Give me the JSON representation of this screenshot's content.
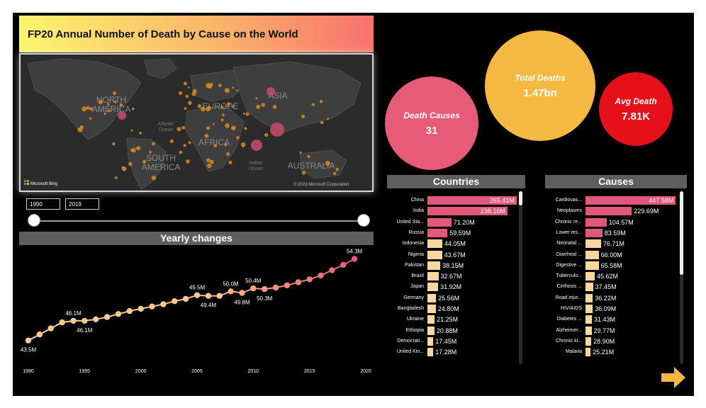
{
  "title": "FP20 Annual Number of Death by Cause on the World",
  "map": {
    "labels": [
      {
        "text": "NORTH\nAMERICA",
        "name": "north-america"
      },
      {
        "text": "EUROPE",
        "name": "europe"
      },
      {
        "text": "ASIA",
        "name": "asia"
      },
      {
        "text": "AFRICA",
        "name": "africa"
      },
      {
        "text": "SOUTH\nAMERICA",
        "name": "south-america"
      },
      {
        "text": "AUSTRALIA",
        "name": "australia"
      },
      {
        "text": "Atlantic\nOcean",
        "name": "atlantic-ocean"
      },
      {
        "text": "Indian\nOcean",
        "name": "indian-ocean"
      }
    ],
    "brand": "Microsoft Bing",
    "copyright": "© 2023 Microsoft Corporation"
  },
  "filters": {
    "start_year": "1990",
    "end_year": "2019"
  },
  "kpis": {
    "causes_label": "Death Causes",
    "causes_value": "31",
    "total_label": "Total Deaths",
    "total_value": "1.47bn",
    "avg_label": "Avg Death",
    "avg_value": "7.81K"
  },
  "colors": {
    "pink": "#e75a78",
    "orange": "#f5b942",
    "red": "#e5101a",
    "peach": "#fdd7a0",
    "bar_pink": "#e2587a"
  },
  "chart_data": [
    {
      "type": "line",
      "title": "Yearly changes",
      "x": [
        1990,
        1991,
        1992,
        1993,
        1994,
        1995,
        1996,
        1997,
        1998,
        1999,
        2000,
        2001,
        2002,
        2003,
        2004,
        2005,
        2006,
        2007,
        2008,
        2009,
        2010,
        2011,
        2012,
        2013,
        2014,
        2015,
        2016,
        2017,
        2018,
        2019
      ],
      "y": [
        43.5,
        44.3,
        45.1,
        45.9,
        46.1,
        46.1,
        46.3,
        46.6,
        47.0,
        47.4,
        47.7,
        48.0,
        48.3,
        48.7,
        49.0,
        49.5,
        49.4,
        49.4,
        50.0,
        49.8,
        50.4,
        50.3,
        50.5,
        50.8,
        51.2,
        51.6,
        52.1,
        52.8,
        53.5,
        54.3
      ],
      "xticks": [
        "1990",
        "1995",
        "2000",
        "2005",
        "2010",
        "2015",
        "2020"
      ],
      "point_labels": [
        {
          "index": 0,
          "text": "43.5M",
          "pos": "below"
        },
        {
          "index": 4,
          "text": "46.1M",
          "pos": "above"
        },
        {
          "index": 5,
          "text": "46.1M",
          "pos": "below"
        },
        {
          "index": 15,
          "text": "49.5M",
          "pos": "above"
        },
        {
          "index": 16,
          "text": "49.4M",
          "pos": "below"
        },
        {
          "index": 18,
          "text": "50.0M",
          "pos": "above"
        },
        {
          "index": 19,
          "text": "49.8M",
          "pos": "below"
        },
        {
          "index": 20,
          "text": "50.4M",
          "pos": "above"
        },
        {
          "index": 21,
          "text": "50.3M",
          "pos": "below"
        },
        {
          "index": 29,
          "text": "54.3M",
          "pos": "above"
        }
      ],
      "xlim": [
        1990,
        2020
      ],
      "ylim": [
        43,
        55
      ]
    },
    {
      "type": "bar",
      "title": "Countries",
      "categories": [
        "China",
        "India",
        "United Sta...",
        "Russia",
        "Indonesia",
        "Nigeria",
        "Pakistan",
        "Brazil",
        "Japan",
        "Germany",
        "Bangladesh",
        "Ukraine",
        "Ethiopia",
        "Democrati...",
        "United Kin..."
      ],
      "values": [
        265.41,
        238.16,
        71.2,
        59.59,
        44.05,
        43.67,
        38.15,
        32.67,
        31.92,
        25.56,
        24.8,
        21.25,
        20.88,
        17.45,
        17.28
      ],
      "labels": [
        "265.41M",
        "238.16M",
        "71.20M",
        "59.59M",
        "44.05M",
        "43.67M",
        "38.15M",
        "32.67M",
        "31.92M",
        "25.56M",
        "24.80M",
        "21.25M",
        "20.88M",
        "17.45M",
        "17.28M"
      ],
      "xlim": [
        0,
        270
      ]
    },
    {
      "type": "bar",
      "title": "Causes",
      "categories": [
        "Cardiovas...",
        "Neoplasms",
        "Chronic re...",
        "Lower res...",
        "Neonatal ...",
        "Diarrheal ...",
        "Digestive ...",
        "Tuberculo...",
        "Cirrhosis ...",
        "Road injur...",
        "HIV/AIDS",
        "Diabetes ...",
        "Alzheimer...",
        "Chronic ki...",
        "Malaria"
      ],
      "values": [
        447.58,
        229.69,
        104.57,
        83.59,
        76.71,
        66.0,
        65.58,
        45.62,
        37.45,
        36.22,
        36.09,
        31.43,
        29.77,
        28.9,
        25.21
      ],
      "labels": [
        "447.58M",
        "229.69M",
        "104.57M",
        "83.59M",
        "76.71M",
        "66.00M",
        "65.58M",
        "45.62M",
        "37.45M",
        "36.22M",
        "36.09M",
        "31.43M",
        "29.77M",
        "28.90M",
        "25.21M"
      ],
      "xlim": [
        0,
        450
      ]
    }
  ]
}
